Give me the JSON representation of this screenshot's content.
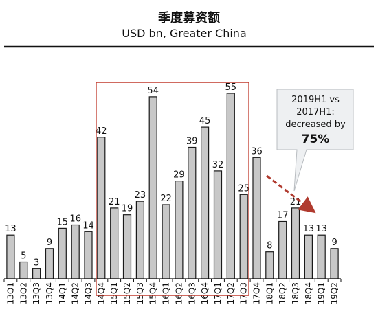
{
  "chart_data": {
    "type": "bar",
    "title": "季度募资额",
    "subtitle": "USD bn,  Greater China",
    "categories": [
      "13Q1",
      "13Q2",
      "13Q3",
      "13Q4",
      "14Q1",
      "14Q2",
      "14Q3",
      "14Q4",
      "15Q1",
      "15Q2",
      "15Q3",
      "15Q4",
      "16Q1",
      "16Q2",
      "16Q3",
      "16Q4",
      "17Q1",
      "17Q2",
      "17Q3",
      "17Q4",
      "18Q1",
      "18Q2",
      "18Q3",
      "18Q4",
      "19Q1",
      "19Q2"
    ],
    "values": [
      13,
      5,
      3,
      9,
      15,
      16,
      14,
      42,
      21,
      19,
      23,
      54,
      22,
      29,
      39,
      45,
      32,
      55,
      25,
      36,
      8,
      17,
      21,
      13,
      13,
      9
    ],
    "ylim": [
      0,
      60
    ],
    "grid": false,
    "legend": "none",
    "highlight_range": [
      "14Q4",
      "17Q3"
    ],
    "callout": {
      "lines": [
        "2019H1 vs",
        "2017H1:",
        "decreased by"
      ],
      "percent": "75%"
    },
    "colors": {
      "bar_fill": "#c8c8c8",
      "bar_stroke": "#1a1a1a",
      "highlight_box": "#c0392b",
      "arrow": "#b03a2e",
      "callout_fill": "#eef0f2",
      "callout_stroke": "#b8bcc0"
    }
  }
}
